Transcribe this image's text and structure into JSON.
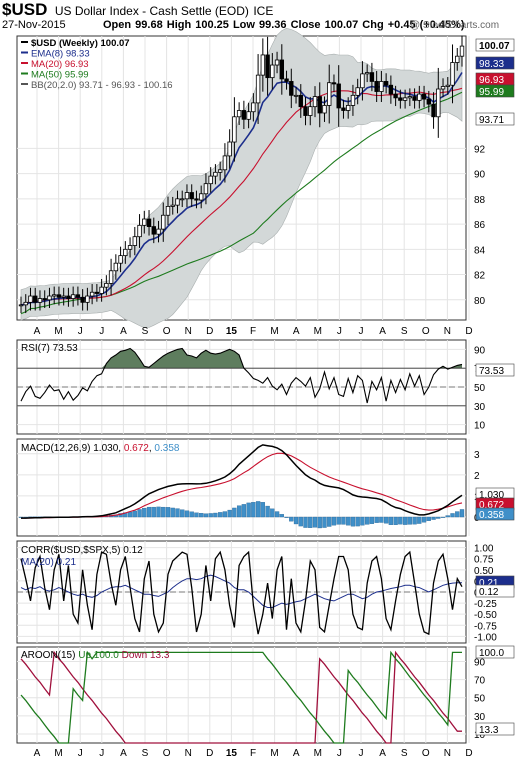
{
  "header": {
    "symbol": "$USD",
    "name": "US Dollar Index - Cash Settle (EOD)",
    "exchange": "ICE",
    "date": "27-Nov-2015",
    "quote": "Open 99.68  High 100.25  Low 99.36  Close 100.07  Chg +0.45 (+0.45%)",
    "watermark": "@ StockCharts.com"
  },
  "months": [
    "A",
    "M",
    "J",
    "J",
    "A",
    "S",
    "O",
    "N",
    "D",
    "15",
    "F",
    "M",
    "A",
    "M",
    "J",
    "J",
    "A",
    "S",
    "O",
    "N",
    "D"
  ],
  "chart_data": [
    {
      "type": "candlestick",
      "legend": [
        {
          "text": "$USD (Weekly) 100.07",
          "color": "#000000"
        },
        {
          "text": "EMA(8) 98.33",
          "color": "#1c2e8c"
        },
        {
          "text": "MA(20) 96.93",
          "color": "#c8102e"
        },
        {
          "text": "MA(50) 95.99",
          "color": "#1e7b1e"
        },
        {
          "text": "BB(20,2.0) 93.71 - 96.93 - 100.16",
          "color": "#555555"
        }
      ],
      "y_ticks": [
        80,
        82,
        84,
        86,
        88,
        90,
        92
      ],
      "ylim": [
        78.4,
        100.9
      ],
      "last_value_tags": [
        {
          "text": "100.07",
          "value": 100.07,
          "bg": "#ffffff",
          "fg": "#000000",
          "bold": true
        },
        {
          "text": "98.33",
          "value": 98.33,
          "bg": "#1c2e8c",
          "fg": "#ffffff"
        },
        {
          "text": "96.93",
          "value": 96.93,
          "bg": "#c8102e",
          "fg": "#ffffff"
        },
        {
          "text": "95.99",
          "value": 95.99,
          "bg": "#1e7b1e",
          "fg": "#ffffff"
        },
        {
          "text": "93.71",
          "value": 93.71,
          "bg": "#ffffff",
          "fg": "#000000"
        }
      ],
      "close": [
        79.6,
        79.8,
        80.3,
        79.8,
        80.1,
        80.0,
        80.3,
        80.4,
        80.2,
        80.3,
        80.1,
        80.4,
        80.2,
        79.8,
        80.3,
        80.6,
        80.5,
        81.0,
        81.3,
        82.3,
        82.9,
        83.5,
        84.0,
        84.3,
        85.0,
        85.9,
        86.4,
        85.8,
        85.2,
        85.6,
        86.7,
        87.4,
        87.5,
        88.0,
        88.0,
        88.5,
        88.0,
        87.9,
        88.4,
        89.2,
        89.8,
        90.1,
        90.3,
        91.4,
        92.5,
        94.5,
        95.0,
        94.3,
        94.9,
        95.6,
        97.8,
        99.4,
        97.6,
        98.6,
        99.0,
        97.5,
        97.3,
        96.2,
        96.2,
        95.3,
        94.6,
        95.3,
        96.1,
        94.8,
        95.4,
        97.2,
        97.1,
        95.2,
        95.0,
        95.4,
        96.2,
        96.8,
        97.9,
        98.0,
        97.3,
        96.5,
        97.3,
        97.0,
        96.3,
        96.0,
        95.8,
        96.0,
        96.1,
        95.8,
        96.3,
        95.9,
        95.5,
        94.5,
        96.7,
        96.9,
        97.0,
        98.8,
        99.3,
        100.1
      ]
    },
    {
      "type": "line",
      "title": "RSI(7) 73.53",
      "ylim": [
        0,
        100
      ],
      "y_ticks": [
        10,
        30,
        50,
        70,
        90
      ],
      "reference_lines": [
        70,
        30
      ],
      "last_value": 73.53,
      "values": [
        35,
        45,
        51,
        40,
        38,
        44,
        52,
        46,
        47,
        37,
        45,
        36,
        41,
        49,
        46,
        56,
        62,
        64,
        75,
        81,
        84,
        88,
        89,
        91,
        87,
        80,
        72,
        71,
        75,
        79,
        83,
        86,
        88,
        90,
        91,
        84,
        83,
        81,
        86,
        89,
        86,
        85,
        86,
        88,
        90,
        88,
        84,
        70,
        65,
        59,
        57,
        54,
        60,
        51,
        47,
        53,
        42,
        54,
        60,
        56,
        51,
        60,
        39,
        48,
        66,
        48,
        60,
        42,
        40,
        59,
        44,
        62,
        57,
        33,
        56,
        47,
        60,
        35,
        57,
        44,
        58,
        47,
        64,
        51,
        62,
        42,
        50,
        63,
        69,
        72,
        69,
        71,
        73,
        74
      ]
    },
    {
      "type": "line",
      "title": "MACD(12,26,9) 1.030, 0.672, 0.358",
      "ylim": [
        -0.9,
        3.7
      ],
      "y_ticks": [
        0,
        1,
        2,
        3
      ],
      "last_value_tags": [
        {
          "text": "1.030",
          "value": 1.03,
          "bg": "#ffffff",
          "fg": "#000000"
        },
        {
          "text": "0.672",
          "value": 0.672,
          "bg": "#c8102e",
          "fg": "#ffffff"
        },
        {
          "text": "0.358",
          "value": 0.358,
          "bg": "#3f8fc8",
          "fg": "#ffffff"
        }
      ],
      "series": [
        {
          "name": "MACD",
          "values": [
            -0.05,
            -0.05,
            -0.04,
            -0.03,
            -0.03,
            -0.02,
            -0.02,
            -0.02,
            -0.01,
            -0.01,
            -0.01,
            0,
            0,
            0.01,
            0.02,
            0.02,
            0.04,
            0.06,
            0.1,
            0.15,
            0.2,
            0.3,
            0.4,
            0.5,
            0.62,
            0.78,
            0.95,
            1.1,
            1.2,
            1.3,
            1.38,
            1.45,
            1.5,
            1.55,
            1.57,
            1.58,
            1.58,
            1.57,
            1.58,
            1.6,
            1.65,
            1.72,
            1.8,
            1.9,
            2.05,
            2.25,
            2.5,
            2.7,
            2.9,
            3.1,
            3.3,
            3.42,
            3.38,
            3.35,
            3.28,
            3.15,
            2.95,
            2.7,
            2.45,
            2.22,
            2.0,
            1.85,
            1.75,
            1.6,
            1.5,
            1.45,
            1.42,
            1.38,
            1.3,
            1.18,
            1.05,
            0.98,
            0.95,
            0.93,
            0.9,
            0.88,
            0.82,
            0.7,
            0.55,
            0.45,
            0.4,
            0.3,
            0.22,
            0.15,
            0.1,
            0.1,
            0.15,
            0.22,
            0.3,
            0.42,
            0.55,
            0.72,
            0.88,
            1.03
          ]
        },
        {
          "name": "Signal",
          "values": [
            -0.05,
            -0.05,
            -0.05,
            -0.04,
            -0.04,
            -0.03,
            -0.03,
            -0.02,
            -0.02,
            -0.02,
            -0.01,
            -0.01,
            -0.01,
            0,
            0,
            0,
            0.01,
            0.02,
            0.04,
            0.06,
            0.09,
            0.13,
            0.19,
            0.26,
            0.33,
            0.42,
            0.53,
            0.63,
            0.73,
            0.82,
            0.91,
            0.99,
            1.07,
            1.15,
            1.22,
            1.28,
            1.33,
            1.37,
            1.4,
            1.44,
            1.48,
            1.53,
            1.58,
            1.64,
            1.72,
            1.82,
            1.96,
            2.1,
            2.23,
            2.4,
            2.56,
            2.72,
            2.86,
            2.96,
            3.02,
            3.02,
            2.98,
            2.9,
            2.78,
            2.65,
            2.5,
            2.36,
            2.24,
            2.12,
            2.0,
            1.9,
            1.81,
            1.73,
            1.65,
            1.57,
            1.49,
            1.41,
            1.34,
            1.28,
            1.22,
            1.15,
            1.08,
            1.0,
            0.92,
            0.82,
            0.74,
            0.66,
            0.57,
            0.49,
            0.41,
            0.35,
            0.33,
            0.34,
            0.37,
            0.42,
            0.48,
            0.55,
            0.62,
            0.67
          ]
        },
        {
          "name": "Histogram",
          "values": [
            0,
            0,
            0.01,
            0.01,
            0.01,
            0.01,
            0.01,
            0,
            0.01,
            0.01,
            0,
            0.01,
            0.01,
            0.01,
            0.02,
            0.02,
            0.03,
            0.04,
            0.06,
            0.09,
            0.11,
            0.17,
            0.21,
            0.24,
            0.29,
            0.36,
            0.42,
            0.47,
            0.47,
            0.48,
            0.47,
            0.46,
            0.43,
            0.4,
            0.35,
            0.3,
            0.25,
            0.2,
            0.18,
            0.16,
            0.17,
            0.19,
            0.22,
            0.26,
            0.33,
            0.43,
            0.54,
            0.6,
            0.67,
            0.7,
            0.74,
            0.7,
            0.52,
            0.39,
            0.26,
            0.13,
            -0.03,
            -0.2,
            -0.33,
            -0.43,
            -0.5,
            -0.51,
            -0.49,
            -0.52,
            -0.5,
            -0.45,
            -0.39,
            -0.35,
            -0.35,
            -0.39,
            -0.44,
            -0.43,
            -0.39,
            -0.35,
            -0.32,
            -0.27,
            -0.26,
            -0.3,
            -0.37,
            -0.37,
            -0.34,
            -0.36,
            -0.35,
            -0.34,
            -0.31,
            -0.25,
            -0.18,
            -0.12,
            -0.07,
            0,
            0.07,
            0.17,
            0.26,
            0.36
          ]
        }
      ]
    },
    {
      "type": "line",
      "title": "CORR($USD,$SPX,5) 0.12",
      "ylim": [
        -1.15,
        1.15
      ],
      "y_ticks": [
        1.0,
        0.75,
        0.5,
        0.25,
        0.0,
        -0.25,
        -0.5,
        -0.75,
        -1.0
      ],
      "tick_labels": [
        "1.00",
        "0.75",
        "0.50",
        "0.25",
        "0.00",
        "-0.25",
        "-0.50",
        "-0.75",
        "-1.00"
      ],
      "reference_lines": [
        0
      ],
      "last_value_tags": [
        {
          "text": "0.21",
          "value": 0.21,
          "bg": "#1c2e8c",
          "fg": "#ffffff"
        },
        {
          "text": "0.12",
          "value": 0.12,
          "bg": "#ffffff",
          "fg": "#000000"
        }
      ],
      "series": [
        {
          "name": "$USD,$SPX",
          "values": [
            0.75,
            0.3,
            -0.2,
            0.55,
            0.8,
            0.1,
            -0.4,
            0.5,
            0.85,
            -0.2,
            0.6,
            -0.5,
            -0.7,
            0.5,
            -0.3,
            -0.85,
            0.4,
            0.9,
            0.85,
            0.2,
            -0.3,
            0.5,
            0.8,
            0.1,
            -0.6,
            -0.9,
            0.3,
            0.7,
            -0.5,
            -0.9,
            -0.7,
            0.4,
            0.7,
            0.8,
            0.9,
            0.85,
            0.1,
            -0.9,
            -0.5,
            0.6,
            -0.2,
            0.75,
            0.9,
            0.5,
            -0.3,
            -0.8,
            0.6,
            0.8,
            0.9,
            -0.3,
            -0.95,
            -0.5,
            0.2,
            -0.6,
            0.5,
            0.8,
            -0.85,
            0.3,
            -0.7,
            -0.9,
            -0.2,
            0.7,
            0.5,
            -0.8,
            -0.9,
            -0.3,
            0.3,
            0.8,
            0.8,
            0.5,
            -0.5,
            -0.8,
            -0.85,
            0.2,
            0.7,
            0.8,
            0.3,
            -0.6,
            -0.85,
            -0.2,
            0.4,
            0.8,
            0.9,
            0.2,
            -0.5,
            -0.9,
            -0.95,
            0.2,
            0.7,
            0.85,
            0.3,
            -0.4,
            0.3,
            0.12
          ]
        },
        {
          "name": "MA(20)",
          "values": [
            0.1,
            0.05,
            0.1,
            0.08,
            0.12,
            0.05,
            0.02,
            0.05,
            0.1,
            0.05,
            0,
            -0.05,
            -0.08,
            -0.05,
            -0.1,
            -0.12,
            -0.08,
            0,
            0.05,
            0.1,
            0.12,
            0.12,
            0.15,
            0.1,
            0.05,
            0,
            -0.05,
            -0.05,
            -0.08,
            -0.1,
            -0.05,
            0,
            0.1,
            0.18,
            0.25,
            0.3,
            0.3,
            0.28,
            0.3,
            0.35,
            0.38,
            0.35,
            0.3,
            0.25,
            0.2,
            0.1,
            0.05,
            0.05,
            0,
            -0.1,
            -0.2,
            -0.3,
            -0.35,
            -0.35,
            -0.3,
            -0.25,
            -0.28,
            -0.25,
            -0.22,
            -0.2,
            -0.15,
            -0.1,
            -0.05,
            -0.1,
            -0.15,
            -0.18,
            -0.2,
            -0.15,
            -0.1,
            -0.05,
            -0.05,
            -0.1,
            -0.15,
            -0.12,
            -0.05,
            0,
            0.02,
            0.05,
            0.08,
            0.1,
            0.12,
            0.15,
            0.15,
            0.12,
            0.1,
            0.05,
            0,
            0.05,
            0.1,
            0.15,
            0.18,
            0.2,
            0.21,
            0.21
          ]
        }
      ]
    },
    {
      "type": "line",
      "title": "AROON(15) Up 100.0 Down 13.3",
      "ylim": [
        0,
        106
      ],
      "y_ticks": [
        10,
        30,
        50,
        70,
        90
      ],
      "last_value_tags": [
        {
          "text": "100.0",
          "value": 100,
          "bg": "#ffffff",
          "fg": "#000000"
        },
        {
          "text": "13.3",
          "value": 13.3,
          "bg": "#ffffff",
          "fg": "#000000"
        }
      ],
      "series": [
        {
          "name": "Up",
          "values": [
            53,
            47,
            40,
            33,
            27,
            20,
            13,
            7,
            0,
            0,
            0,
            60,
            53,
            47,
            100,
            93,
            100,
            100,
            100,
            100,
            100,
            100,
            100,
            100,
            100,
            100,
            100,
            100,
            100,
            100,
            100,
            100,
            100,
            100,
            100,
            100,
            100,
            100,
            100,
            100,
            100,
            100,
            100,
            100,
            100,
            100,
            100,
            100,
            100,
            100,
            100,
            100,
            93,
            87,
            80,
            73,
            67,
            60,
            53,
            47,
            40,
            33,
            27,
            20,
            13,
            7,
            0,
            0,
            0,
            80,
            73,
            67,
            60,
            53,
            47,
            40,
            33,
            27,
            100,
            93,
            87,
            80,
            73,
            67,
            60,
            53,
            47,
            40,
            33,
            27,
            20,
            100,
            100,
            100
          ]
        },
        {
          "name": "Down",
          "values": [
            93,
            87,
            80,
            73,
            67,
            60,
            53,
            100,
            93,
            87,
            80,
            73,
            67,
            60,
            53,
            47,
            40,
            33,
            27,
            20,
            13,
            7,
            0,
            0,
            0,
            0,
            0,
            0,
            0,
            0,
            0,
            0,
            0,
            0,
            0,
            0,
            0,
            0,
            0,
            0,
            0,
            0,
            0,
            0,
            0,
            0,
            0,
            0,
            0,
            0,
            0,
            0,
            0,
            0,
            0,
            0,
            0,
            0,
            0,
            0,
            0,
            0,
            0,
            93,
            87,
            80,
            73,
            67,
            60,
            53,
            47,
            40,
            33,
            27,
            20,
            13,
            7,
            0,
            0,
            100,
            93,
            87,
            80,
            73,
            67,
            60,
            53,
            47,
            40,
            33,
            27,
            20,
            13,
            13
          ]
        }
      ]
    }
  ]
}
